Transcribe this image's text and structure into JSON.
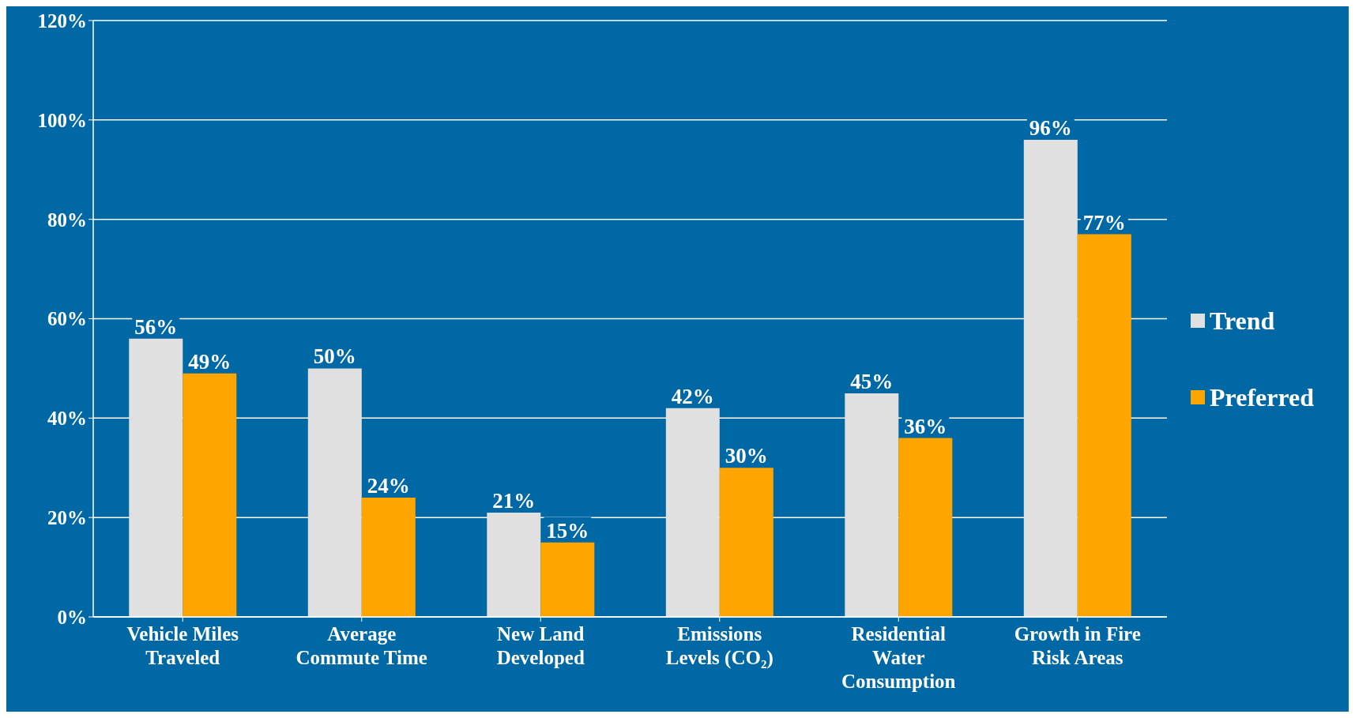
{
  "chart_data": {
    "type": "bar",
    "categories": [
      "Vehicle Miles Traveled",
      "Average Commute Time",
      "New Land Developed",
      "Emissions Levels (CO₂)",
      "Residential Water Consumption",
      "Growth in Fire Risk Areas"
    ],
    "series": [
      {
        "name": "Trend",
        "color": "#e0e0e0",
        "values": [
          56,
          50,
          21,
          42,
          45,
          96
        ],
        "value_labels": [
          "56%",
          "50%",
          "21%",
          "42%",
          "45%",
          "96%"
        ]
      },
      {
        "name": "Preferred",
        "color": "#ffa500",
        "values": [
          49,
          24,
          15,
          30,
          36,
          77
        ],
        "value_labels": [
          "49%",
          "24%",
          "15%",
          "30%",
          "36%",
          "77%"
        ]
      }
    ],
    "ylim": [
      0,
      120
    ],
    "yticks": [
      {
        "value": 0,
        "label": "0%"
      },
      {
        "value": 20,
        "label": "20%"
      },
      {
        "value": 40,
        "label": "40%"
      },
      {
        "value": 60,
        "label": "60%"
      },
      {
        "value": 80,
        "label": "80%"
      },
      {
        "value": 100,
        "label": "100%"
      },
      {
        "value": 120,
        "label": "120%"
      }
    ],
    "grid": "y",
    "legend": "right"
  }
}
